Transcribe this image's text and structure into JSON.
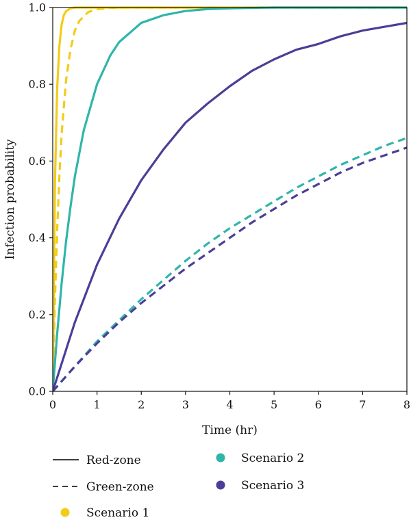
{
  "chart_data": {
    "type": "line",
    "xlabel": "Time (hr)",
    "ylabel": "Infection probability",
    "xlim": [
      0,
      8
    ],
    "ylim": [
      0,
      1
    ],
    "x_ticks": [
      "0",
      "1",
      "2",
      "3",
      "4",
      "5",
      "6",
      "7",
      "8"
    ],
    "y_ticks": [
      "0.0",
      "0.2",
      "0.4",
      "0.6",
      "0.8",
      "1.0"
    ],
    "grid": false,
    "legend_position": "below",
    "legend": {
      "line_styles": [
        {
          "label": "Red-zone",
          "style": "solid"
        },
        {
          "label": "Green-zone",
          "style": "dashed"
        }
      ],
      "scenarios": [
        {
          "label": "Scenario 1",
          "color": "#F2CC17"
        },
        {
          "label": "Scenario 2",
          "color": "#2FB5AA"
        },
        {
          "label": "Scenario 3",
          "color": "#4B3E97"
        }
      ]
    },
    "series": [
      {
        "scenario": "Scenario 1",
        "zone": "Red-zone",
        "style": "solid",
        "color": "#F2CC17",
        "x": [
          0,
          0.05,
          0.1,
          0.15,
          0.2,
          0.25,
          0.3,
          0.4,
          0.5,
          0.7,
          1.0,
          1.5,
          2,
          8
        ],
        "y": [
          0,
          0.54,
          0.79,
          0.9,
          0.955,
          0.98,
          0.99,
          0.998,
          1.0,
          1.0,
          1.0,
          1.0,
          1.0,
          1.0
        ]
      },
      {
        "scenario": "Scenario 1",
        "zone": "Green-zone",
        "style": "dashed",
        "color": "#F2CC17",
        "x": [
          0,
          0.05,
          0.1,
          0.15,
          0.2,
          0.3,
          0.4,
          0.5,
          0.6,
          0.8,
          1.0,
          1.3,
          1.6,
          2,
          8
        ],
        "y": [
          0,
          0.24,
          0.42,
          0.56,
          0.67,
          0.81,
          0.89,
          0.94,
          0.965,
          0.988,
          0.996,
          0.999,
          1.0,
          1.0,
          1.0
        ]
      },
      {
        "scenario": "Scenario 2",
        "zone": "Red-zone",
        "style": "solid",
        "color": "#2FB5AA",
        "x": [
          0,
          0.1,
          0.2,
          0.3,
          0.4,
          0.5,
          0.7,
          1.0,
          1.3,
          1.5,
          2,
          2.5,
          3,
          3.5,
          4,
          5,
          6,
          8
        ],
        "y": [
          0,
          0.15,
          0.28,
          0.39,
          0.48,
          0.56,
          0.68,
          0.8,
          0.875,
          0.91,
          0.96,
          0.98,
          0.991,
          0.996,
          0.998,
          1.0,
          1.0,
          1.0
        ]
      },
      {
        "scenario": "Scenario 2",
        "zone": "Green-zone",
        "style": "dashed",
        "color": "#2FB5AA",
        "x": [
          0,
          0.5,
          1,
          1.5,
          2,
          2.5,
          3,
          3.5,
          4,
          4.5,
          5,
          5.5,
          6,
          6.5,
          7,
          7.5,
          8
        ],
        "y": [
          0,
          0.065,
          0.13,
          0.185,
          0.24,
          0.29,
          0.34,
          0.385,
          0.425,
          0.46,
          0.495,
          0.53,
          0.56,
          0.59,
          0.615,
          0.64,
          0.66
        ]
      },
      {
        "scenario": "Scenario 3",
        "zone": "Red-zone",
        "style": "solid",
        "color": "#4B3E97",
        "x": [
          0,
          0.5,
          1,
          1.5,
          2,
          2.5,
          3,
          3.5,
          4,
          4.5,
          5,
          5.5,
          6,
          6.5,
          7,
          7.5,
          8
        ],
        "y": [
          0,
          0.18,
          0.33,
          0.45,
          0.55,
          0.63,
          0.7,
          0.75,
          0.795,
          0.835,
          0.865,
          0.89,
          0.905,
          0.925,
          0.94,
          0.95,
          0.96
        ]
      },
      {
        "scenario": "Scenario 3",
        "zone": "Green-zone",
        "style": "dashed",
        "color": "#4B3E97",
        "x": [
          0,
          0.5,
          1,
          1.5,
          2,
          2.5,
          3,
          3.5,
          4,
          4.5,
          5,
          5.5,
          6,
          6.5,
          7,
          7.5,
          8
        ],
        "y": [
          0,
          0.065,
          0.125,
          0.18,
          0.23,
          0.275,
          0.32,
          0.36,
          0.4,
          0.44,
          0.475,
          0.51,
          0.54,
          0.57,
          0.595,
          0.615,
          0.635
        ]
      }
    ]
  }
}
